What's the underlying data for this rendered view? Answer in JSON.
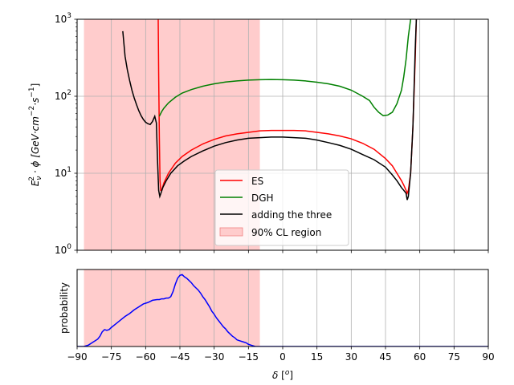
{
  "chart_data": [
    {
      "type": "line",
      "ylabel_parts": [
        "E",
        "ν",
        "2",
        " · ϕ [GeV·cm",
        "−2",
        "·s",
        "−1",
        "]"
      ],
      "yscale": "log",
      "xlim": [
        -90,
        90
      ],
      "ylim": [
        1,
        1000
      ],
      "yticks": [
        {
          "value": 1,
          "base": "10",
          "exp": "0"
        },
        {
          "value": 10,
          "base": "10",
          "exp": "1"
        },
        {
          "value": 100,
          "base": "10",
          "exp": "2"
        },
        {
          "value": 1000,
          "base": "10",
          "exp": "3"
        }
      ],
      "grid": true,
      "legend_position": "lower-center",
      "shaded_region": {
        "name": "90% CL region",
        "x_range": [
          -87,
          -10
        ],
        "color": "#ffcccc",
        "edge": "#f08080"
      },
      "series": [
        {
          "name": "ES",
          "color": "#ff0000",
          "x": [
            -54.5,
            -54.3,
            -54.0,
            -53.7,
            -53.4,
            -53.0,
            -52.0,
            -50.0,
            -47.0,
            -44.0,
            -40.0,
            -35.0,
            -30.0,
            -25.0,
            -20.0,
            -15.0,
            -10.0,
            -5.0,
            0.0,
            5.0,
            10.0,
            15.0,
            20.0,
            25.0,
            30.0,
            35.0,
            40.0,
            45.0,
            48.0,
            50.0,
            52.0,
            53.0,
            54.0,
            54.5,
            55.0,
            56.0,
            57.0,
            58.0,
            58.5
          ],
          "y": [
            1000,
            200,
            30,
            8,
            6,
            6,
            7.5,
            10,
            13.5,
            16.5,
            20,
            24,
            27.5,
            30.5,
            32.5,
            34,
            35.5,
            36,
            36,
            36,
            35.5,
            34,
            32.5,
            30.5,
            28,
            24.5,
            20.5,
            15.5,
            12.5,
            10,
            8,
            7,
            6,
            5.5,
            6,
            10,
            40,
            300,
            1000
          ]
        },
        {
          "name": "DGH",
          "color": "#008000",
          "x": [
            -54.0,
            -53.0,
            -52.0,
            -50.0,
            -47.0,
            -44.0,
            -40.0,
            -35.0,
            -30.0,
            -25.0,
            -20.0,
            -15.0,
            -10.0,
            -5.0,
            0.0,
            5.0,
            10.0,
            15.0,
            20.0,
            25.0,
            30.0,
            35.0,
            38.0,
            40.0,
            42.0,
            44.0,
            46.0,
            48.0,
            50.0,
            52.0,
            53.0,
            54.0,
            55.0,
            56.0
          ],
          "y": [
            55,
            63,
            70,
            82,
            97,
            110,
            122,
            135,
            145,
            153,
            158,
            162,
            164,
            165,
            164,
            162,
            158,
            152,
            145,
            135,
            120,
            100,
            88,
            72,
            62,
            56,
            57,
            62,
            80,
            120,
            180,
            300,
            600,
            1000
          ]
        },
        {
          "name": "adding the three",
          "color": "#000000",
          "x": [
            -70.0,
            -69.0,
            -68.0,
            -67.0,
            -66.0,
            -65.0,
            -64.0,
            -63.0,
            -62.0,
            -61.0,
            -60.0,
            -59.0,
            -58.0,
            -57.0,
            -56.0,
            -55.3,
            -54.8,
            -54.3,
            -53.8,
            -53.3,
            -52.5,
            -51.0,
            -49.0,
            -46.0,
            -43.0,
            -40.0,
            -35.0,
            -30.0,
            -25.0,
            -20.0,
            -15.0,
            -10.0,
            -5.0,
            0.0,
            5.0,
            10.0,
            15.0,
            20.0,
            25.0,
            30.0,
            35.0,
            40.0,
            45.0,
            48.0,
            50.0,
            52.0,
            53.0,
            54.0,
            54.5,
            55.0,
            56.0,
            57.0,
            58.0,
            58.5
          ],
          "y": [
            700,
            330,
            220,
            160,
            120,
            95,
            78,
            65,
            56,
            50,
            46,
            44,
            43,
            47,
            55,
            45,
            15,
            6,
            5,
            5.5,
            6.5,
            8,
            10,
            12.5,
            14.5,
            16.5,
            19.5,
            22.5,
            25,
            27,
            28.5,
            29,
            29.5,
            29.5,
            29,
            28.5,
            27,
            25,
            23,
            20.5,
            17.5,
            15,
            12,
            9.5,
            8,
            6.5,
            6,
            5.5,
            4.5,
            5,
            10,
            40,
            400,
            1000
          ]
        }
      ]
    },
    {
      "type": "line",
      "ylabel": "probability",
      "xlabel_parts": [
        "δ",
        " [",
        "o",
        "]"
      ],
      "xlim": [
        -90,
        90
      ],
      "ylim": [
        0,
        1.05
      ],
      "xticks": [
        -90,
        -75,
        -60,
        -45,
        -30,
        -15,
        0,
        15,
        30,
        45,
        60,
        75,
        90
      ],
      "xtick_labels": [
        "−90",
        "−75",
        "−60",
        "−45",
        "−30",
        "−15",
        "0",
        "15",
        "30",
        "45",
        "60",
        "75",
        "90"
      ],
      "grid": true,
      "shaded_region": {
        "x_range": [
          -87,
          -10
        ],
        "color": "#ffcccc",
        "edge": "#f08080"
      },
      "series": [
        {
          "color": "#0000ff",
          "x": [
            -90,
            -87,
            -85,
            -83,
            -81,
            -80,
            -79,
            -78,
            -77,
            -76,
            -75,
            -73,
            -71,
            -69,
            -67,
            -65,
            -63,
            -61,
            -59,
            -57,
            -55,
            -54,
            -53,
            -52,
            -51,
            -50,
            -49,
            -48,
            -47,
            -46,
            -45,
            -44,
            -43,
            -42,
            -41,
            -40,
            -39,
            -38,
            -37,
            -36,
            -35,
            -34,
            -33,
            -32,
            -31,
            -30,
            -29,
            -28,
            -27,
            -26,
            -25,
            -24,
            -23,
            -22,
            -21,
            -20,
            -19,
            -18,
            -17,
            -16,
            -15,
            -14,
            -13,
            -12,
            -11,
            -10,
            -9,
            -8,
            -5,
            0,
            30,
            60,
            90
          ],
          "y": [
            0.0,
            0.0,
            0.02,
            0.06,
            0.1,
            0.14,
            0.2,
            0.23,
            0.22,
            0.23,
            0.26,
            0.31,
            0.36,
            0.41,
            0.45,
            0.5,
            0.54,
            0.58,
            0.6,
            0.63,
            0.64,
            0.64,
            0.65,
            0.65,
            0.66,
            0.66,
            0.68,
            0.75,
            0.85,
            0.93,
            0.97,
            0.98,
            0.95,
            0.93,
            0.9,
            0.87,
            0.83,
            0.8,
            0.77,
            0.73,
            0.68,
            0.64,
            0.59,
            0.54,
            0.48,
            0.44,
            0.39,
            0.35,
            0.31,
            0.27,
            0.24,
            0.2,
            0.17,
            0.14,
            0.12,
            0.09,
            0.08,
            0.07,
            0.06,
            0.05,
            0.03,
            0.02,
            0.01,
            0.0,
            0.0,
            0.0,
            0.0,
            0.0,
            0.0,
            0.0,
            0.0,
            0.0,
            0.0
          ]
        }
      ]
    }
  ]
}
